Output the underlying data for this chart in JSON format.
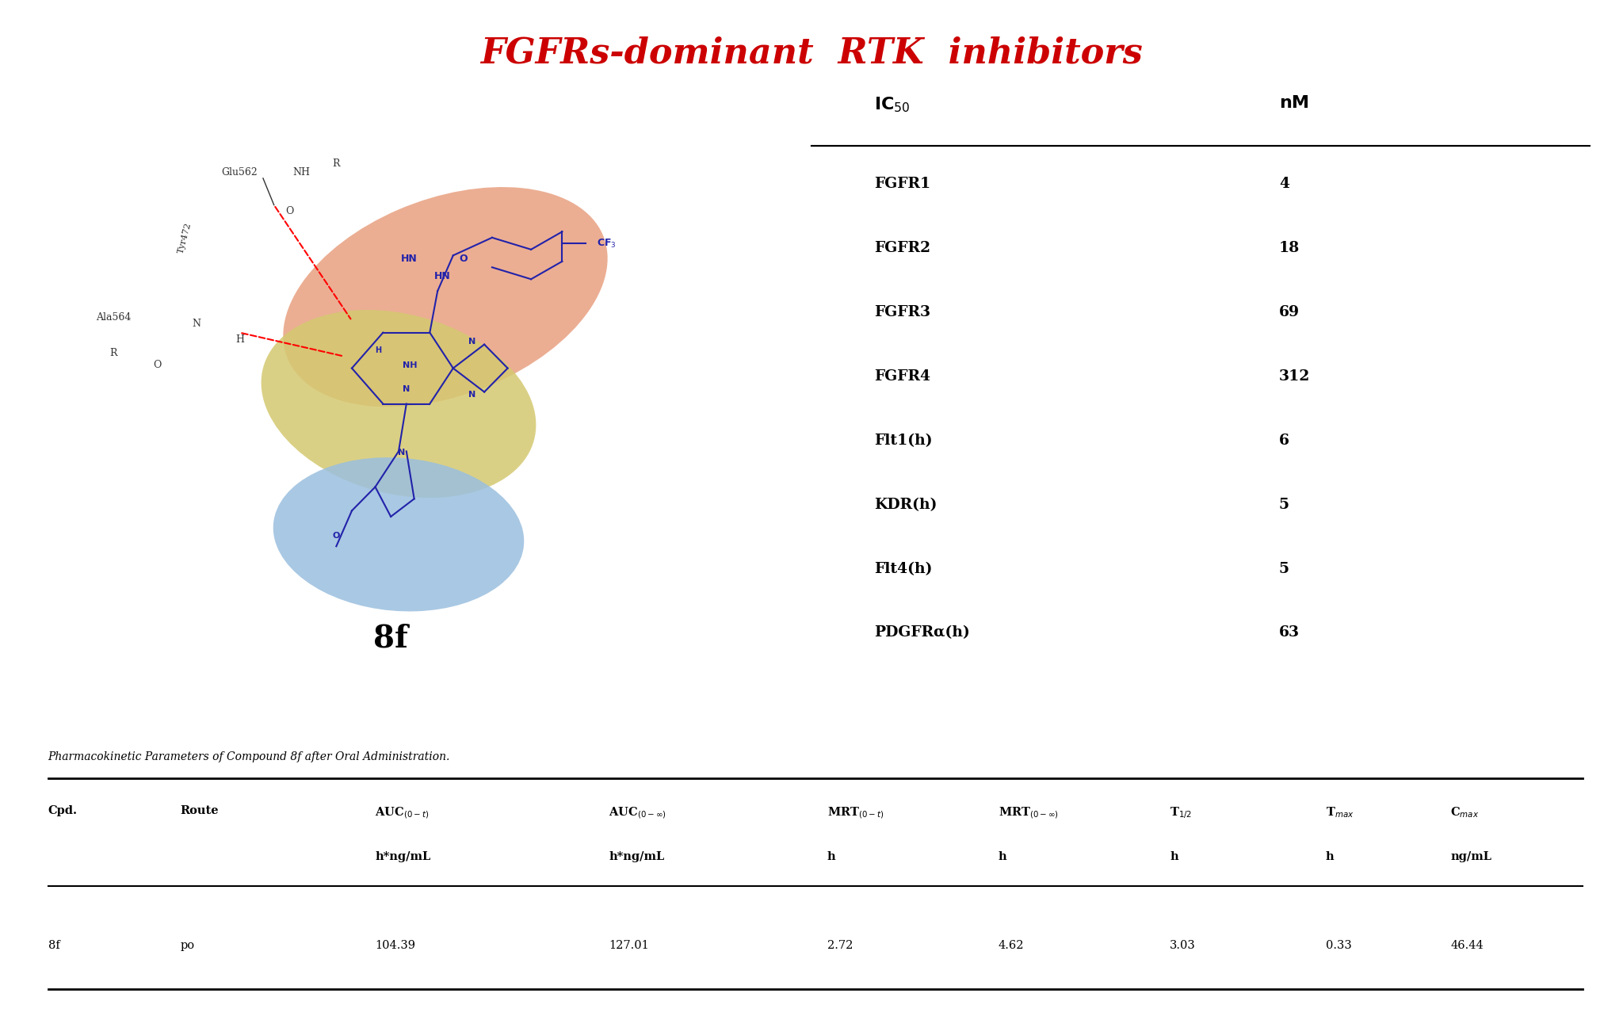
{
  "title": "FGFRs-dominant  RTK  inhibitors",
  "title_color": "#CC0000",
  "title_fontsize": 32,
  "ic50_header": [
    "IC$_{50}$",
    "nM"
  ],
  "ic50_rows": [
    [
      "FGFR1",
      "4"
    ],
    [
      "FGFR2",
      "18"
    ],
    [
      "FGFR3",
      "69"
    ],
    [
      "FGFR4",
      "312"
    ],
    [
      "Flt1(h)",
      "6"
    ],
    [
      "KDR(h)",
      "5"
    ],
    [
      "Flt4(h)",
      "5"
    ],
    [
      "PDGFRα(h)",
      "63"
    ]
  ],
  "compound_label": "8f",
  "pk_caption": "Pharmacokinetic Parameters of Compound 8f after Oral Administration.",
  "pk_col_headers": [
    "Cpd.",
    "Route",
    "AUC$_{(0\\text{-}t)}$\nh*ng/mL",
    "AUC$_{(0\\text{-}\\infty)}$\nh*ng/mL",
    "MRT$_{(0\\text{-}t)}$\nh",
    "MRT$_{(0\\text{-}\\infty)}$\nh",
    "T$_{1/2}$\nh",
    "T$_{max}$\nh",
    "C$_{max}$\nng/mL"
  ],
  "pk_col_headers_line1": [
    "Cpd.",
    "Route",
    "AUC(0-t)",
    "AUC(0-∞)",
    "MRT(0-t)",
    "MRT(0-∞)",
    "T1/2",
    "Tmax",
    "Cmax"
  ],
  "pk_col_headers_line2": [
    "",
    "",
    "h*ng/mL",
    "h*ng/mL",
    "h",
    "h",
    "h",
    "h",
    "ng/mL"
  ],
  "pk_data": [
    "8f",
    "po",
    "104.39",
    "127.01",
    "2.72",
    "4.62",
    "3.03",
    "0.33",
    "46.44"
  ],
  "salmon_blob_color": "#E8A080",
  "yellow_blob_color": "#D4C870",
  "blue_blob_color": "#9ABFDF",
  "background_color": "#FFFFFF"
}
